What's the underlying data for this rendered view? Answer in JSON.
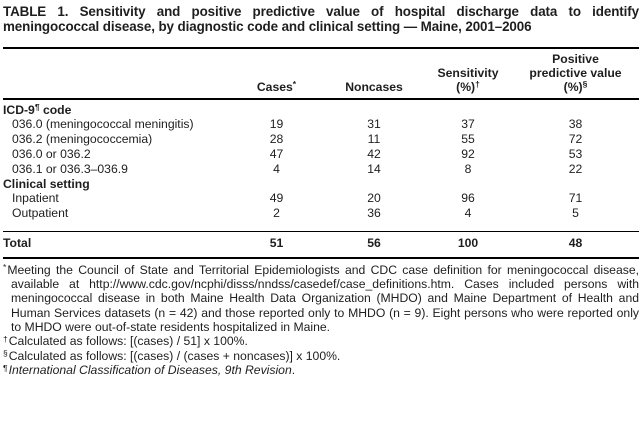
{
  "title": "TABLE 1. Sensitivity and positive predictive value of hospital discharge data to identify meningococcal disease, by diagnostic code and clinical setting — Maine, 2001–2006",
  "colors": {
    "background": "#ffffff",
    "text": "#1e1e1e",
    "rule": "#000000"
  },
  "table": {
    "columns": [
      {
        "id": "cases",
        "lines": [
          {
            "text": "Cases",
            "sup": "*"
          }
        ]
      },
      {
        "id": "noncases",
        "lines": [
          {
            "text": "Noncases"
          }
        ]
      },
      {
        "id": "sensitivity",
        "lines": [
          {
            "text": "Sensitivity"
          },
          {
            "text": "(%)",
            "sup": "†"
          }
        ]
      },
      {
        "id": "ppv",
        "lines": [
          {
            "text": "Positive"
          },
          {
            "text": "predictive value"
          },
          {
            "text": "(%)",
            "sup": "§"
          }
        ]
      }
    ],
    "rows": [
      {
        "type": "section",
        "label": {
          "text": "ICD-9",
          "sup": "¶",
          "tail": " code"
        }
      },
      {
        "type": "data",
        "label": {
          "text": "036.0 (meningococcal meningitis)"
        },
        "values": [
          "19",
          "31",
          "37",
          "38"
        ]
      },
      {
        "type": "data",
        "label": {
          "text": "036.2 (meningococcemia)"
        },
        "values": [
          "28",
          "11",
          "55",
          "72"
        ]
      },
      {
        "type": "data",
        "label": {
          "text": "036.0 or 036.2"
        },
        "values": [
          "47",
          "42",
          "92",
          "53"
        ]
      },
      {
        "type": "data",
        "label": {
          "text": "036.1 or 036.3–036.9"
        },
        "values": [
          "4",
          "14",
          "8",
          "22"
        ]
      },
      {
        "type": "section",
        "label": {
          "text": "Clinical setting"
        }
      },
      {
        "type": "data",
        "label": {
          "text": "Inpatient"
        },
        "values": [
          "49",
          "20",
          "96",
          "71"
        ]
      },
      {
        "type": "data",
        "label": {
          "text": "Outpatient"
        },
        "values": [
          "2",
          "36",
          "4",
          "5"
        ]
      },
      {
        "type": "total",
        "label": {
          "text": "Total"
        },
        "values": [
          "51",
          "56",
          "100",
          "48"
        ]
      }
    ]
  },
  "footnotes": [
    {
      "marker": "*",
      "text": "Meeting the Council of State and Territorial Epidemiologists and CDC case definition for meningococcal disease, available at http://www.cdc.gov/ncphi/disss/nndss/casedef/case_definitions.htm. Cases included persons with meningococcal disease in both Maine Health Data Organization (MHDO) and Maine Department of Health and Human Services datasets (n = 42) and those reported only to MHDO (n = 9). Eight persons who were reported only to MHDO were out-of-state residents hospitalized in Maine."
    },
    {
      "marker": "†",
      "text": "Calculated as follows: [(cases) / 51] x 100%."
    },
    {
      "marker": "§",
      "text": "Calculated as follows: [(cases) / (cases + noncases)] x 100%."
    },
    {
      "marker": "¶",
      "text": "",
      "italic_text": "International Classification of Diseases, 9th Revision",
      "tail": "."
    }
  ]
}
